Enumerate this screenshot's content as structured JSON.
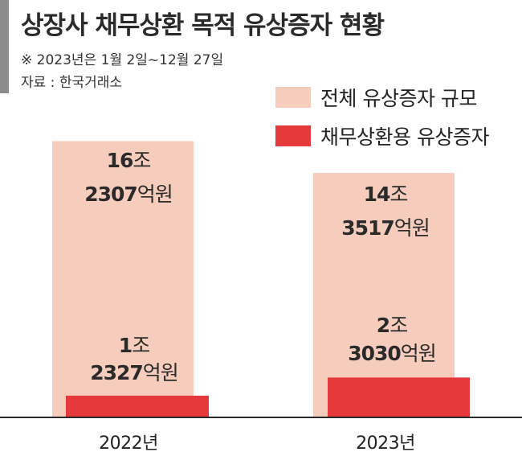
{
  "header": {
    "title": "상장사 채무상환 목적 유상증자 현황",
    "note": "※ 2023년은 1월 2일~12월 27일",
    "source": "자료 : 한국거래소"
  },
  "legend": [
    {
      "label": "전체 유상증자 규모",
      "color": "#f6cdbd"
    },
    {
      "label": "채무상환용 유상증자",
      "color": "#e5393b"
    }
  ],
  "chart_data": {
    "type": "bar",
    "categories": [
      "2022년",
      "2023년"
    ],
    "series": [
      {
        "name": "전체 유상증자 규모",
        "values": [
          162307,
          143517
        ],
        "color": "#f6cdbd",
        "labels": [
          [
            "16조",
            "2307억원"
          ],
          [
            "14조",
            "3517억원"
          ]
        ]
      },
      {
        "name": "채무상환용 유상증자",
        "values": [
          12327,
          23030
        ],
        "color": "#e5393b",
        "labels": [
          [
            "1조",
            "2327억원"
          ],
          [
            "2조",
            "3030억원"
          ]
        ]
      }
    ],
    "unit": "억원",
    "ylim": [
      0,
      163000
    ],
    "grid": false,
    "legend_position": "top-right"
  }
}
